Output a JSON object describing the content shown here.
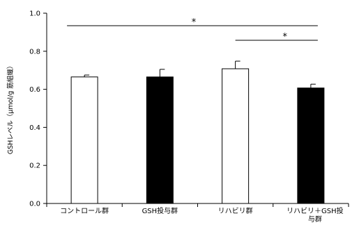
{
  "chart_data": {
    "type": "bar",
    "categories": [
      "コントロール群",
      "GSH投与群",
      "リハビリ群",
      "リハビリ＋GSH投与群"
    ],
    "values": [
      0.665,
      0.665,
      0.708,
      0.607
    ],
    "errors": [
      0.01,
      0.04,
      0.04,
      0.02
    ],
    "bar_colors": [
      "#ffffff",
      "#000000",
      "#ffffff",
      "#000000"
    ],
    "title": "",
    "xlabel": "",
    "ylabel": "GSHレベル（μmol/g 筋組織）",
    "ylim": [
      0,
      1.0
    ],
    "yticks": [
      "0.0",
      "0.2",
      "0.4",
      "0.6",
      "0.8",
      "1.0"
    ],
    "grid": false,
    "significance": [
      {
        "from": 0,
        "to": 3,
        "label": "*"
      },
      {
        "from": 2,
        "to": 3,
        "label": "*"
      }
    ]
  }
}
